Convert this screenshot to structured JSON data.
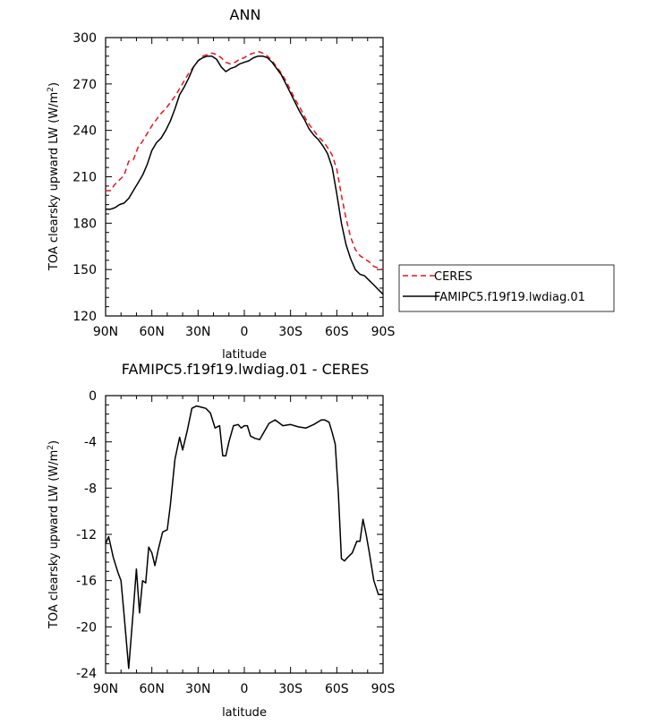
{
  "chart_data": [
    {
      "type": "line",
      "title": "ANN",
      "xlabel": "latitude",
      "ylabel_main": "TOA clearsky upward LW (W/m",
      "ylabel_sup": "2",
      "ylabel_close": ")",
      "xlim": [
        90,
        -90
      ],
      "ylim": [
        120,
        300
      ],
      "x_ticks": [
        90,
        60,
        30,
        0,
        -30,
        -60,
        -90
      ],
      "x_tick_labels": [
        "90N",
        "60N",
        "30N",
        "0",
        "30S",
        "60S",
        "90S"
      ],
      "y_ticks": [
        120,
        150,
        180,
        210,
        240,
        270,
        300
      ],
      "y_tick_labels": [
        "120",
        "150",
        "180",
        "210",
        "240",
        "270",
        "300"
      ],
      "legend_position": "right",
      "series": [
        {
          "name": "CERES",
          "color": "#e8141c",
          "dash": "dashed",
          "x": [
            90,
            87,
            84,
            81,
            78,
            75,
            72,
            69,
            66,
            63,
            60,
            57,
            54,
            51,
            48,
            45,
            42,
            39,
            36,
            33,
            30,
            27,
            24,
            21,
            18,
            15,
            12,
            9,
            6,
            3,
            0,
            -3,
            -6,
            -9,
            -12,
            -15,
            -18,
            -21,
            -24,
            -27,
            -30,
            -33,
            -36,
            -39,
            -42,
            -45,
            -48,
            -51,
            -54,
            -57,
            -60,
            -63,
            -66,
            -69,
            -72,
            -75,
            -78,
            -81,
            -84,
            -87,
            -90
          ],
          "y": [
            201,
            201,
            205,
            208,
            211,
            220,
            221,
            229,
            233,
            238,
            243,
            247,
            251,
            254,
            258,
            262,
            267,
            272,
            277,
            281,
            285,
            288,
            289,
            290,
            289,
            287,
            284,
            283,
            284,
            286,
            287,
            289,
            290,
            291,
            290,
            288,
            285,
            281,
            277,
            272,
            266,
            260,
            255,
            249,
            244,
            240,
            236,
            233,
            229,
            224,
            215,
            198,
            183,
            171,
            163,
            159,
            157,
            155,
            152,
            151,
            150
          ]
        },
        {
          "name": "FAMIPC5.f19f19.lwdiag.01",
          "color": "#000000",
          "dash": "solid",
          "x": [
            90,
            87,
            84,
            81,
            78,
            75,
            72,
            69,
            66,
            63,
            60,
            57,
            54,
            51,
            48,
            45,
            42,
            39,
            36,
            33,
            30,
            27,
            24,
            21,
            18,
            15,
            12,
            9,
            6,
            3,
            0,
            -3,
            -6,
            -9,
            -12,
            -15,
            -18,
            -21,
            -24,
            -27,
            -30,
            -33,
            -36,
            -39,
            -42,
            -45,
            -48,
            -51,
            -54,
            -57,
            -60,
            -63,
            -66,
            -69,
            -72,
            -75,
            -78,
            -81,
            -84,
            -87,
            -90
          ],
          "y": [
            189,
            189,
            190,
            192,
            193,
            196,
            201,
            206,
            211,
            218,
            227,
            232,
            235,
            240,
            246,
            254,
            263,
            268,
            274,
            281,
            285,
            287,
            288,
            288,
            286,
            281,
            278,
            280,
            281,
            283,
            284,
            285,
            287,
            288,
            288,
            287,
            284,
            280,
            276,
            270,
            264,
            258,
            252,
            247,
            241,
            237,
            234,
            230,
            225,
            216,
            199,
            180,
            166,
            157,
            150,
            147,
            146,
            143,
            140,
            137,
            134
          ]
        }
      ]
    },
    {
      "type": "line",
      "title": "FAMIPC5.f19f19.lwdiag.01 - CERES",
      "xlabel": "latitude",
      "ylabel_main": "TOA clearsky upward LW (W/m",
      "ylabel_sup": "2",
      "ylabel_close": ")",
      "xlim": [
        90,
        -90
      ],
      "ylim": [
        -24,
        0
      ],
      "x_ticks": [
        90,
        60,
        30,
        0,
        -30,
        -60,
        -90
      ],
      "x_tick_labels": [
        "90N",
        "60N",
        "30N",
        "0",
        "30S",
        "60S",
        "90S"
      ],
      "y_ticks": [
        -24,
        -20,
        -16,
        -12,
        -8,
        -4,
        0
      ],
      "y_tick_labels": [
        "-24",
        "-20",
        "-16",
        "-12",
        "-8",
        "-4",
        "0"
      ],
      "series": [
        {
          "color": "#000000",
          "dash": "solid",
          "x": [
            90,
            88,
            85,
            82,
            80,
            78,
            75,
            72,
            70,
            68,
            66,
            64,
            62,
            60,
            58,
            56,
            53,
            50,
            48,
            45,
            42,
            40,
            37,
            34,
            31,
            28,
            25,
            22,
            19,
            16,
            14,
            12,
            10,
            7,
            4,
            2,
            0,
            -2,
            -4,
            -7,
            -10,
            -13,
            -16,
            -20,
            -25,
            -30,
            -35,
            -40,
            -45,
            -50,
            -52,
            -55,
            -57,
            -59,
            -61,
            -63,
            -65,
            -67,
            -70,
            -73,
            -75,
            -77,
            -79,
            -81,
            -84,
            -87,
            -90
          ],
          "y": [
            -12.8,
            -12.2,
            -14,
            -15.3,
            -16,
            -19,
            -23.6,
            -18.5,
            -15,
            -18.8,
            -16,
            -16.2,
            -13.1,
            -13.6,
            -14.7,
            -13.4,
            -11.8,
            -11.6,
            -9.5,
            -5.5,
            -3.6,
            -4.7,
            -3,
            -1.1,
            -0.9,
            -1,
            -1.1,
            -1.5,
            -2.8,
            -2.6,
            -5.2,
            -5.2,
            -4,
            -2.6,
            -2.5,
            -2.8,
            -2.6,
            -2.6,
            -3.5,
            -3.7,
            -3.8,
            -3.1,
            -2.4,
            -2.1,
            -2.6,
            -2.5,
            -2.7,
            -2.8,
            -2.5,
            -2.1,
            -2.1,
            -2.3,
            -3.2,
            -4.2,
            -8.5,
            -14.1,
            -14.3,
            -14,
            -13.6,
            -12.6,
            -12.6,
            -10.7,
            -12,
            -13.5,
            -16,
            -17.2,
            -17.2
          ]
        }
      ]
    }
  ]
}
